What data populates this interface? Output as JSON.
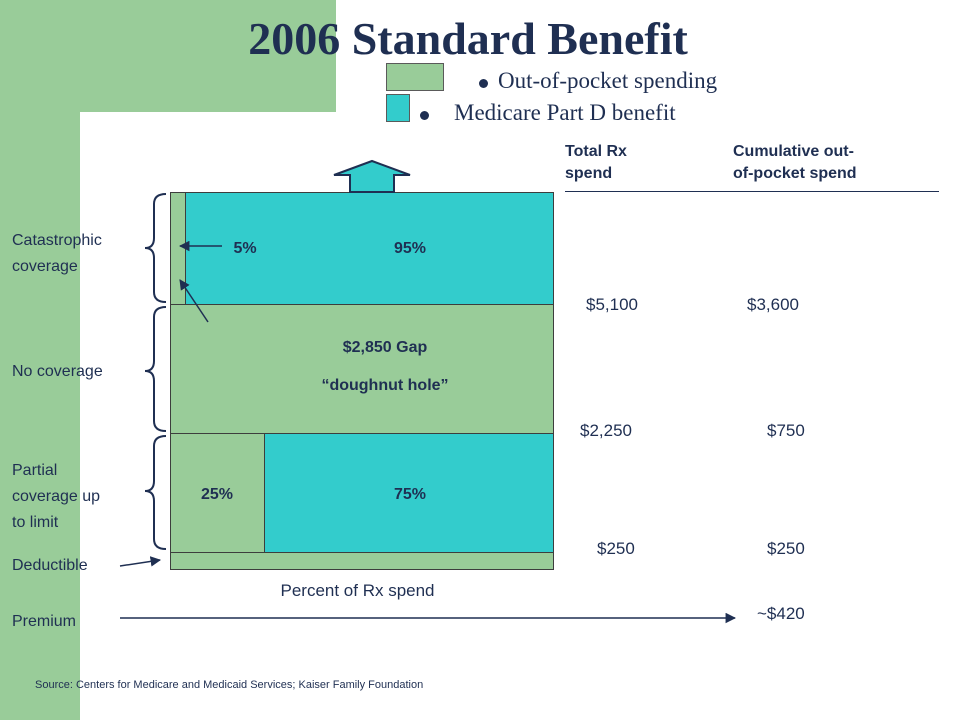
{
  "title": "2006 Standard Benefit",
  "legend": [
    {
      "label": "Out-of-pocket spending",
      "color": "#99cc99"
    },
    {
      "label": "Medicare Part D benefit",
      "color": "#33cccc"
    }
  ],
  "side_labels": {
    "catastrophic": "Catastrophic coverage",
    "no_coverage": "No coverage",
    "partial": "Partial coverage up to limit",
    "deductible": "Deductible",
    "premium": "Premium"
  },
  "bar_labels": {
    "catastrophic_oop": "5%",
    "catastrophic_benefit": "95%",
    "gap_line1": "$2,850 Gap",
    "gap_line2": "“doughnut hole”",
    "partial_oop": "25%",
    "partial_benefit": "75%",
    "x_axis": "Percent of Rx spend"
  },
  "columns": {
    "total_rx_header_1": "Total Rx",
    "total_rx_header_2": "spend",
    "oop_header_1": "Cumulative out-",
    "oop_header_2": "of-pocket spend"
  },
  "thresholds": [
    {
      "total_rx": "$5,100",
      "cumulative_oop": "$3,600"
    },
    {
      "total_rx": "$2,250",
      "cumulative_oop": "$750"
    },
    {
      "total_rx": "$250",
      "cumulative_oop": "$250"
    }
  ],
  "premium_value": "~$420",
  "source": "Source: Centers for Medicare and Medicaid Services; Kaiser Family Foundation",
  "colors": {
    "oop": "#99cc99",
    "benefit": "#33cccc",
    "text": "#1f2f52",
    "background_accent": "#99cc99"
  }
}
